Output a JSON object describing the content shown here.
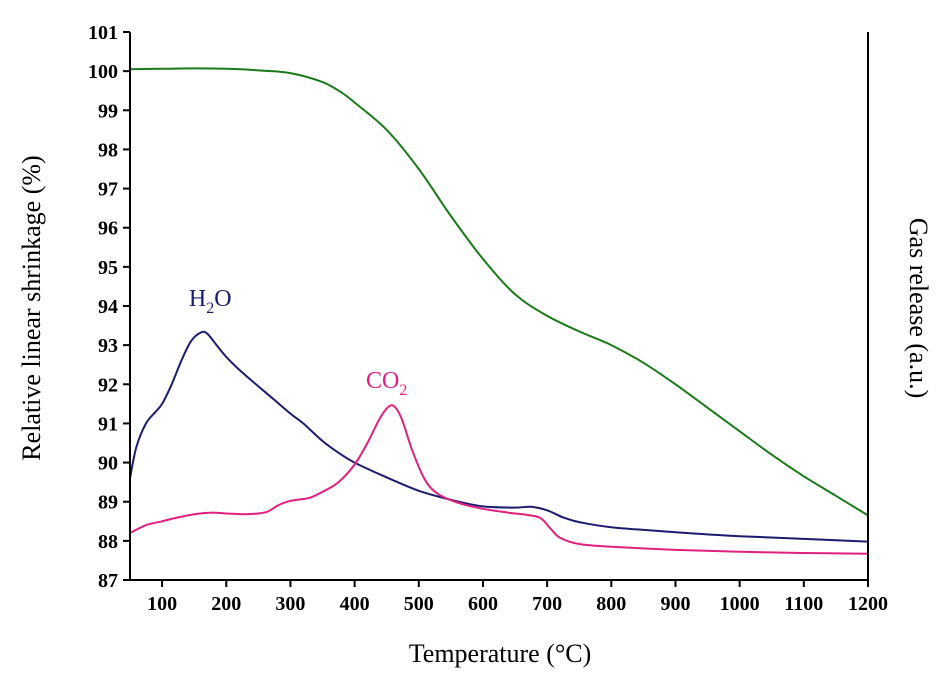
{
  "chart_data": {
    "type": "line",
    "xlabel": "Temperature (°C)",
    "ylabel": "Relative linear shrinkage (%)",
    "y2label": "Gas release (a.u.)",
    "xlim": [
      50,
      1200
    ],
    "ylim": [
      87,
      101
    ],
    "xticks": [
      100,
      200,
      300,
      400,
      500,
      600,
      700,
      800,
      900,
      1000,
      1100,
      1200
    ],
    "yticks": [
      87,
      88,
      89,
      90,
      91,
      92,
      93,
      94,
      95,
      96,
      97,
      98,
      99,
      100,
      101
    ],
    "grid": false,
    "annotations": [
      {
        "main": "H",
        "sub": "2",
        "tail": "O",
        "x": 175,
        "y": 94.0,
        "color": "#1c1c6e"
      },
      {
        "main": "CO",
        "sub": "2",
        "tail": "",
        "x": 450,
        "y": 91.9,
        "color": "#e0207e"
      }
    ],
    "series": [
      {
        "color": "#1a7a1a",
        "x": [
          50,
          100,
          150,
          200,
          250,
          300,
          350,
          380,
          400,
          450,
          500,
          550,
          600,
          650,
          700,
          750,
          800,
          850,
          900,
          950,
          1000,
          1050,
          1100,
          1150,
          1200
        ],
        "y": [
          100.05,
          100.06,
          100.07,
          100.06,
          100.02,
          99.95,
          99.72,
          99.45,
          99.2,
          98.5,
          97.5,
          96.3,
          95.2,
          94.3,
          93.75,
          93.35,
          93.0,
          92.55,
          92.0,
          91.4,
          90.8,
          90.2,
          89.65,
          89.15,
          88.65
        ]
      },
      {
        "color": "#1c1c6e",
        "x": [
          50,
          60,
          75,
          90,
          100,
          115,
          130,
          145,
          160,
          170,
          185,
          200,
          225,
          250,
          275,
          300,
          320,
          350,
          375,
          400,
          450,
          500,
          550,
          600,
          650,
          675,
          700,
          725,
          750,
          800,
          900,
          1000,
          1100,
          1200
        ],
        "y": [
          89.6,
          90.4,
          91.0,
          91.3,
          91.5,
          92.0,
          92.6,
          93.1,
          93.32,
          93.3,
          93.0,
          92.7,
          92.3,
          91.95,
          91.6,
          91.25,
          91.0,
          90.55,
          90.25,
          90.0,
          89.62,
          89.28,
          89.05,
          88.88,
          88.85,
          88.87,
          88.78,
          88.6,
          88.48,
          88.35,
          88.22,
          88.12,
          88.05,
          87.98
        ]
      },
      {
        "color": "#e0207e",
        "x": [
          50,
          75,
          100,
          125,
          150,
          175,
          200,
          225,
          250,
          265,
          280,
          295,
          310,
          330,
          350,
          375,
          400,
          420,
          440,
          455,
          465,
          475,
          490,
          510,
          530,
          560,
          600,
          640,
          670,
          690,
          705,
          720,
          750,
          800,
          900,
          1000,
          1100,
          1200
        ],
        "y": [
          88.2,
          88.4,
          88.5,
          88.6,
          88.68,
          88.72,
          88.7,
          88.68,
          88.7,
          88.75,
          88.9,
          89.0,
          89.05,
          89.1,
          89.25,
          89.5,
          89.95,
          90.5,
          91.15,
          91.45,
          91.38,
          91.05,
          90.3,
          89.55,
          89.2,
          88.98,
          88.82,
          88.72,
          88.66,
          88.58,
          88.32,
          88.08,
          87.92,
          87.85,
          87.77,
          87.72,
          87.69,
          87.67
        ]
      }
    ]
  }
}
